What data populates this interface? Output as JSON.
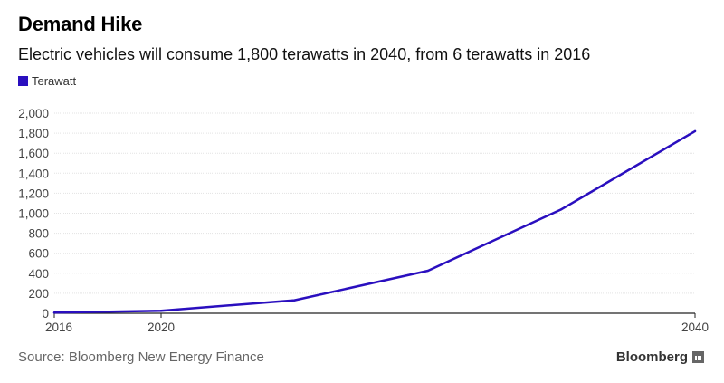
{
  "header": {
    "title": "Demand Hike",
    "subtitle": "Electric vehicles will consume 1,800 terawatts in 2040, from 6 terawatts in 2016"
  },
  "legend": {
    "label": "Terawatt",
    "color": "#2a0fbf"
  },
  "footer": {
    "source": "Source: Bloomberg New Energy Finance",
    "brand": "Bloomberg",
    "brand_icon": "bloomberg-logo-icon"
  },
  "chart_data": {
    "type": "line",
    "title": "Demand Hike",
    "subtitle": "Electric vehicles will consume 1,800 terawatts in 2040, from 6 terawatts in 2016",
    "xlabel": "",
    "ylabel": "",
    "xlim": [
      2016,
      2040
    ],
    "ylim": [
      0,
      2000
    ],
    "x_ticks": [
      2016,
      2020,
      2040
    ],
    "x_tick_labels": [
      "2016",
      "2020",
      "2040"
    ],
    "y_ticks": [
      0,
      200,
      400,
      600,
      800,
      1000,
      1200,
      1400,
      1600,
      1800,
      2000
    ],
    "y_tick_labels": [
      "0",
      "200",
      "400",
      "600",
      "800",
      "1,000",
      "1,200",
      "1,400",
      "1,600",
      "1,800",
      "2,000"
    ],
    "grid": true,
    "legend_position": "top-left",
    "series": [
      {
        "name": "Terawatt",
        "color": "#2a0fbf",
        "x": [
          2016,
          2020,
          2025,
          2030,
          2035,
          2040
        ],
        "y": [
          6,
          25,
          130,
          425,
          1040,
          1820
        ]
      }
    ]
  }
}
